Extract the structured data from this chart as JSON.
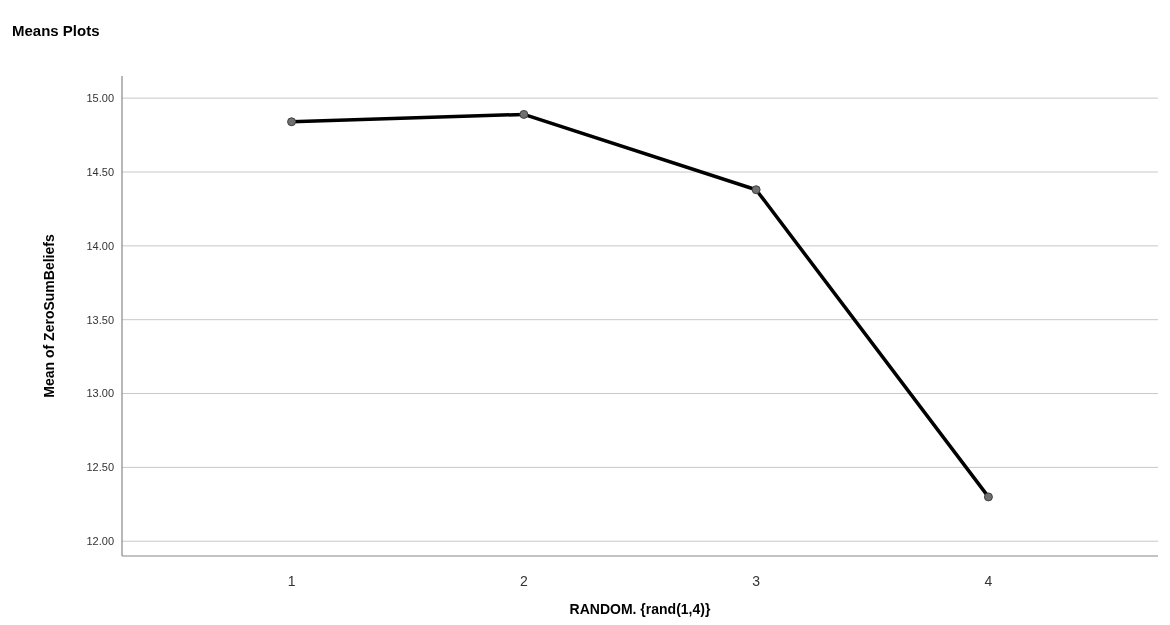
{
  "chart_data": {
    "type": "line",
    "title": "Means Plots",
    "xlabel": "RANDOM. {rand(1,4)}",
    "ylabel": "Mean of ZeroSumBeliefs",
    "categories": [
      "1",
      "2",
      "3",
      "4"
    ],
    "series": [
      {
        "color": "#000000",
        "values": [
          14.84,
          14.89,
          14.38,
          12.3
        ]
      }
    ],
    "ylim": [
      11.9,
      15.15
    ],
    "yticks": [
      {
        "value": 12,
        "label": "12.00"
      },
      {
        "value": 12.5,
        "label": "12.50"
      },
      {
        "value": 13,
        "label": "13.00"
      },
      {
        "value": 13.5,
        "label": "13.50"
      },
      {
        "value": 14,
        "label": "14.00"
      },
      {
        "value": 14.5,
        "label": "14.50"
      },
      {
        "value": 15,
        "label": "15.00"
      }
    ],
    "grid": "y",
    "marker": "circle",
    "line_style": "solid"
  }
}
